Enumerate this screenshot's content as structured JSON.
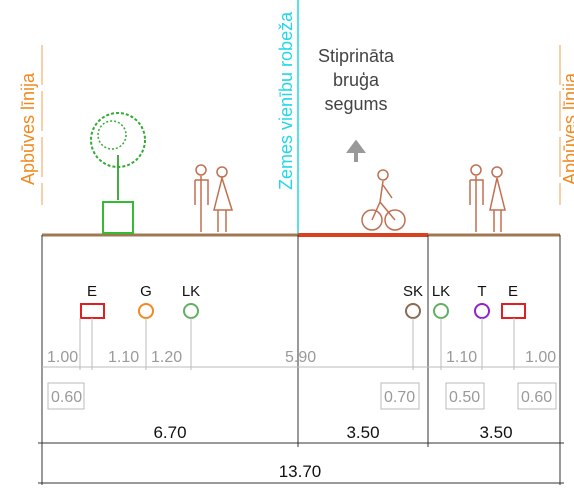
{
  "labels": {
    "building_line_left": "Apbūves līnija",
    "building_line_right": "Apbūves līnija",
    "property_boundary": "Zemes vienību robeža",
    "surface": [
      "Stiprināta",
      "bruģa",
      "segums"
    ]
  },
  "utilities": [
    "E",
    "G",
    "LK",
    "SK",
    "LK",
    "T",
    "E"
  ],
  "offsets_upper": [
    "1.00",
    "1.10",
    "1.20",
    "5.90",
    "1.10",
    "1.00"
  ],
  "offsets_lower": [
    "0.60",
    "0.70",
    "0.50",
    "0.60"
  ],
  "widths": [
    "6.70",
    "3.50",
    "3.50"
  ],
  "total": "13.70"
}
